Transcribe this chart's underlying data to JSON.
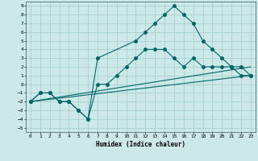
{
  "xlabel": "Humidex (Indice chaleur)",
  "bg_color": "#cce8e8",
  "grid_color": "#a8d0d0",
  "line_color": "#006666",
  "xlim": [
    -0.5,
    23.5
  ],
  "ylim": [
    -5.5,
    9.5
  ],
  "xticks": [
    0,
    1,
    2,
    3,
    4,
    5,
    6,
    7,
    8,
    9,
    10,
    11,
    12,
    13,
    14,
    15,
    16,
    17,
    18,
    19,
    20,
    21,
    22,
    23
  ],
  "yticks": [
    -5,
    -4,
    -3,
    -2,
    -1,
    0,
    1,
    2,
    3,
    4,
    5,
    6,
    7,
    8,
    9
  ],
  "line1_x": [
    0,
    1,
    2,
    3,
    4,
    5,
    6,
    7,
    11,
    12,
    13,
    14,
    15,
    16,
    17,
    18,
    19,
    20,
    21,
    22,
    23
  ],
  "line1_y": [
    -2,
    -1,
    -1,
    -2,
    -2,
    -3,
    -4,
    3,
    5,
    6,
    7,
    8,
    9,
    8,
    7,
    5,
    4,
    3,
    2,
    2,
    1
  ],
  "line2_x": [
    0,
    1,
    2,
    3,
    4,
    5,
    6,
    7,
    8,
    9,
    10,
    11,
    12,
    13,
    14,
    15,
    16,
    17,
    18,
    19,
    20,
    21,
    22,
    23
  ],
  "line2_y": [
    -2,
    -1,
    -1,
    -2,
    -2,
    -3,
    -4,
    0,
    0,
    1,
    2,
    3,
    4,
    4,
    4,
    3,
    2,
    3,
    2,
    2,
    2,
    2,
    1,
    1
  ],
  "line3_x": [
    0,
    23
  ],
  "line3_y": [
    -2,
    2
  ],
  "line4_x": [
    0,
    23
  ],
  "line4_y": [
    -2,
    1
  ]
}
